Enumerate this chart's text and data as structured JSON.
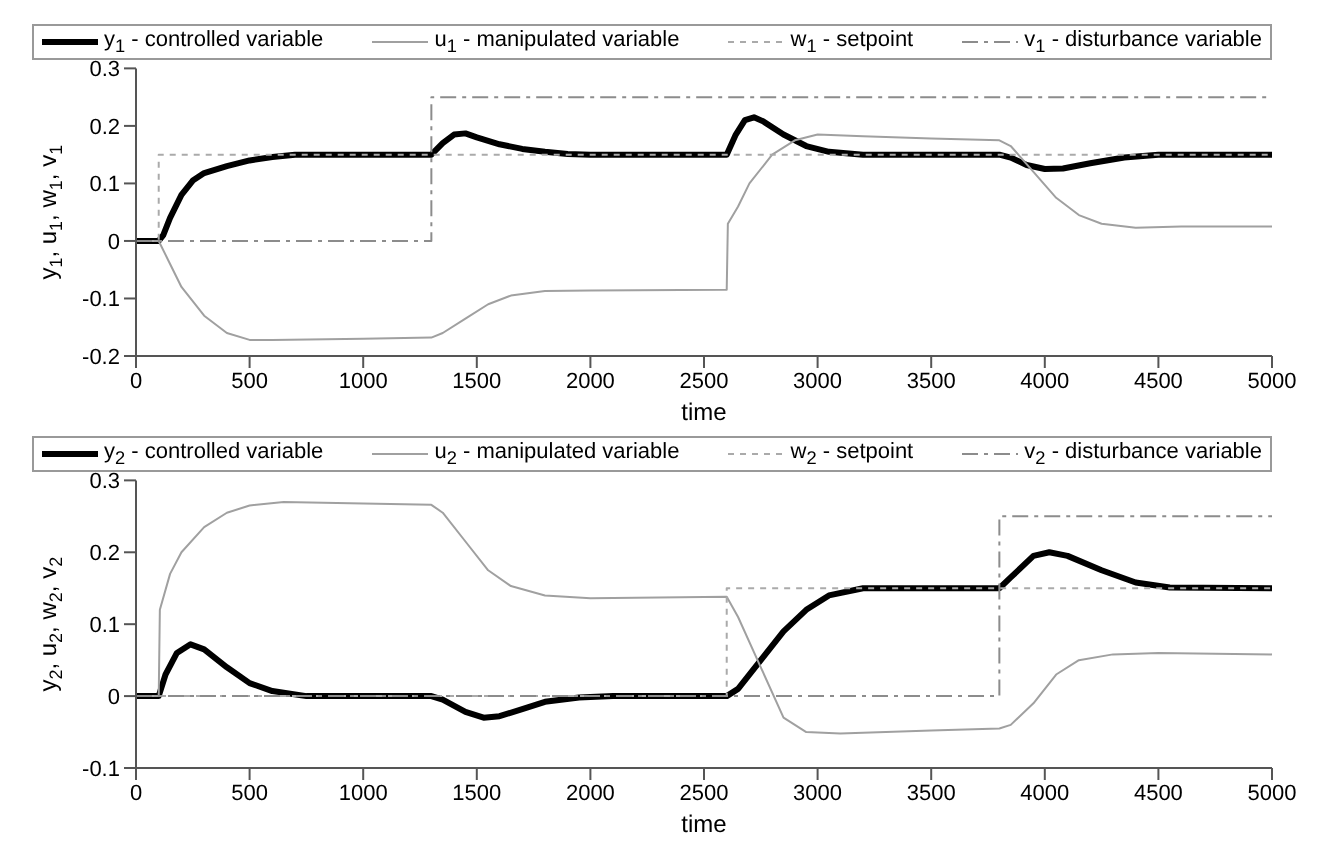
{
  "chart_data": [
    {
      "type": "line",
      "xlabel": "time",
      "ylabel": "y$_{1}$, u$_{1}$, w$_{1}$, v$_{1}$",
      "xlim": [
        0,
        5000
      ],
      "ylim": [
        -0.2,
        0.3
      ],
      "xticks": [
        0,
        500,
        1000,
        1500,
        2000,
        2500,
        3000,
        3500,
        4000,
        4500,
        5000
      ],
      "yticks": [
        -0.2,
        -0.1,
        0,
        0.1,
        0.2,
        0.3
      ],
      "legend": "top",
      "marker": "none",
      "series": [
        {
          "name": "y$_{1}$  - controlled variable",
          "color": "#000000",
          "line_style": "solid",
          "x": [
            0,
            100,
            120,
            150,
            200,
            250,
            300,
            400,
            500,
            600,
            700,
            1300,
            1350,
            1400,
            1450,
            1500,
            1600,
            1700,
            1800,
            1900,
            2000,
            2600,
            2640,
            2680,
            2720,
            2760,
            2850,
            2950,
            3050,
            3200,
            3800,
            3850,
            3920,
            4000,
            4080,
            4200,
            4350,
            4500,
            5000
          ],
          "values": [
            0,
            0,
            0.01,
            0.04,
            0.08,
            0.105,
            0.118,
            0.13,
            0.14,
            0.146,
            0.15,
            0.15,
            0.17,
            0.185,
            0.187,
            0.18,
            0.168,
            0.16,
            0.155,
            0.151,
            0.15,
            0.15,
            0.185,
            0.21,
            0.215,
            0.208,
            0.185,
            0.165,
            0.155,
            0.15,
            0.15,
            0.145,
            0.132,
            0.125,
            0.126,
            0.135,
            0.145,
            0.15,
            0.15
          ]
        },
        {
          "name": "u$_{1}$  - manipulated variable",
          "color": "#a0a0a0",
          "line_style": "solid",
          "x": [
            0,
            100,
            150,
            200,
            300,
            400,
            500,
            600,
            1000,
            1300,
            1350,
            1450,
            1550,
            1650,
            1800,
            2000,
            2600,
            2605,
            2650,
            2700,
            2800,
            2900,
            3000,
            3200,
            3500,
            3800,
            3850,
            3950,
            4050,
            4150,
            4250,
            4400,
            4600,
            5000
          ],
          "values": [
            0,
            0,
            -0.04,
            -0.08,
            -0.13,
            -0.16,
            -0.172,
            -0.172,
            -0.17,
            -0.168,
            -0.16,
            -0.135,
            -0.11,
            -0.095,
            -0.087,
            -0.086,
            -0.085,
            0.03,
            0.06,
            0.1,
            0.15,
            0.175,
            0.185,
            0.182,
            0.178,
            0.175,
            0.165,
            0.12,
            0.075,
            0.045,
            0.03,
            0.023,
            0.025,
            0.025
          ]
        },
        {
          "name": "w$_{1}$  - setpoint",
          "type": "step",
          "color": "#aaaaaa",
          "line_style": "dotted",
          "x": [
            0,
            100,
            300,
            2700,
            4000,
            5000
          ],
          "values": [
            0,
            0.15,
            0.15,
            0.15,
            0.15,
            0.15
          ]
        },
        {
          "name": "v$_{1}$  - disturbance variable",
          "type": "step",
          "color": "#8c8c8c",
          "line_style": "dashed",
          "x": [
            0,
            1300,
            5000
          ],
          "values": [
            0,
            0.25,
            0.25
          ]
        }
      ]
    },
    {
      "type": "line",
      "xlabel": "time",
      "ylabel": "y$_{2}$, u$_{2}$, w$_{2}$, v$_{2}$",
      "xlim": [
        0,
        5000
      ],
      "ylim": [
        -0.1,
        0.3
      ],
      "xticks": [
        0,
        500,
        1000,
        1500,
        2000,
        2500,
        3000,
        3500,
        4000,
        4500,
        5000
      ],
      "yticks": [
        -0.1,
        0,
        0.1,
        0.2,
        0.3
      ],
      "legend": "top",
      "marker": "none",
      "series": [
        {
          "name": "y$_{2}$  - controlled variable",
          "color": "#000000",
          "line_style": "solid",
          "x": [
            0,
            100,
            130,
            180,
            240,
            300,
            400,
            500,
            600,
            750,
            1300,
            1350,
            1450,
            1530,
            1600,
            1700,
            1800,
            1950,
            2100,
            2600,
            2650,
            2750,
            2850,
            2950,
            3050,
            3200,
            3800,
            3850,
            3950,
            4020,
            4100,
            4250,
            4400,
            4550,
            5000
          ],
          "values": [
            0,
            0,
            0.03,
            0.06,
            0.072,
            0.065,
            0.04,
            0.018,
            0.007,
            0,
            0,
            -0.005,
            -0.022,
            -0.03,
            -0.028,
            -0.018,
            -0.008,
            -0.002,
            0,
            0,
            0.01,
            0.05,
            0.09,
            0.12,
            0.14,
            0.15,
            0.15,
            0.165,
            0.195,
            0.2,
            0.195,
            0.175,
            0.158,
            0.151,
            0.15
          ]
        },
        {
          "name": "u$_{2}$  - manipulated variable",
          "color": "#a0a0a0",
          "line_style": "solid",
          "x": [
            0,
            100,
            105,
            150,
            200,
            300,
            400,
            500,
            650,
            1000,
            1300,
            1350,
            1450,
            1550,
            1650,
            1800,
            2000,
            2600,
            2650,
            2750,
            2850,
            2950,
            3100,
            3500,
            3800,
            3850,
            3950,
            4050,
            4150,
            4300,
            4500,
            5000
          ],
          "values": [
            0,
            0,
            0.12,
            0.17,
            0.2,
            0.235,
            0.255,
            0.265,
            0.27,
            0.268,
            0.266,
            0.255,
            0.215,
            0.175,
            0.153,
            0.14,
            0.136,
            0.138,
            0.11,
            0.04,
            -0.03,
            -0.05,
            -0.052,
            -0.048,
            -0.045,
            -0.04,
            -0.01,
            0.03,
            0.05,
            0.058,
            0.06,
            0.058
          ]
        },
        {
          "name": "w$_{2}$  - setpoint",
          "type": "step",
          "color": "#aaaaaa",
          "line_style": "dotted",
          "x": [
            0,
            2600,
            5000
          ],
          "values": [
            0,
            0.15,
            0.15
          ]
        },
        {
          "name": "v$_{2}$  - disturbance variable",
          "type": "step",
          "color": "#8c8c8c",
          "line_style": "dashed",
          "x": [
            0,
            3800,
            5000
          ],
          "values": [
            0,
            0.25,
            0.25
          ]
        }
      ]
    }
  ]
}
